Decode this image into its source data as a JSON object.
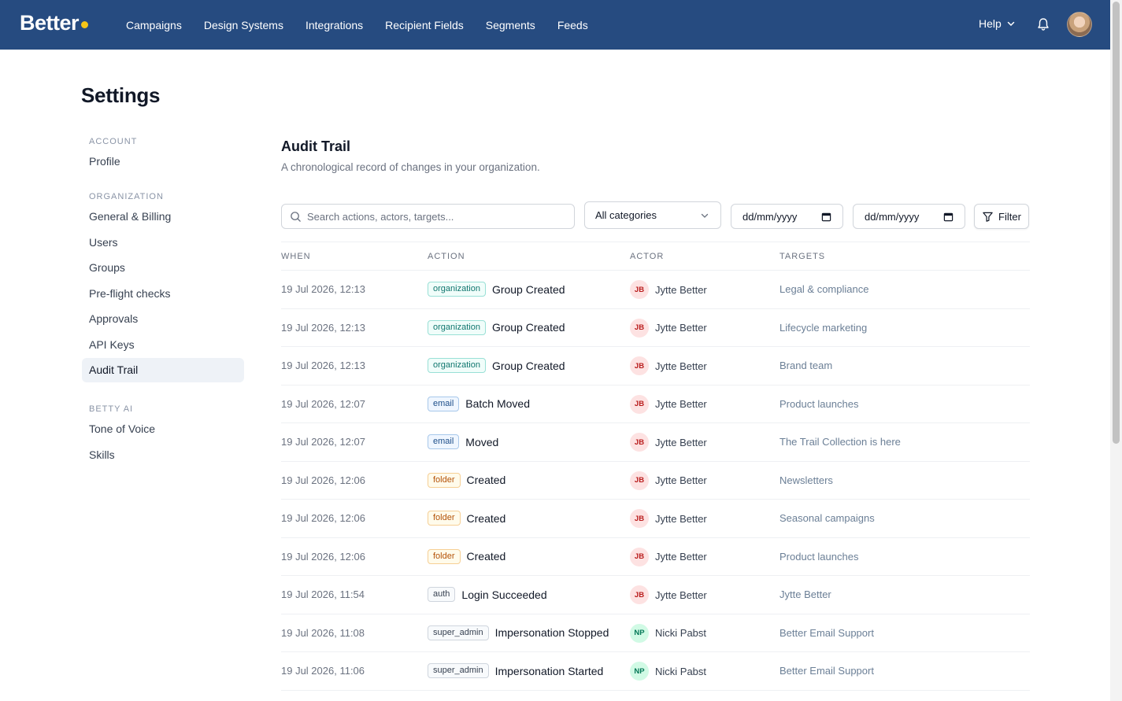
{
  "app": {
    "logo_text": "Better"
  },
  "nav": {
    "items": [
      "Campaigns",
      "Design Systems",
      "Integrations",
      "Recipient Fields",
      "Segments",
      "Feeds"
    ],
    "help_label": "Help"
  },
  "page": {
    "title": "Settings"
  },
  "sidebar": {
    "sections": [
      {
        "heading": "ACCOUNT",
        "items": [
          "Profile"
        ]
      },
      {
        "heading": "ORGANIZATION",
        "items": [
          "General & Billing",
          "Users",
          "Groups",
          "Pre-flight checks",
          "Approvals",
          "API Keys",
          "Audit Trail"
        ]
      },
      {
        "heading": "BETTY AI",
        "items": [
          "Tone of Voice",
          "Skills"
        ]
      }
    ],
    "active_item": "Audit Trail"
  },
  "main": {
    "title": "Audit Trail",
    "subtitle": "A chronological record of changes in your organization."
  },
  "filters": {
    "search_placeholder": "Search actions, actors, targets...",
    "category_value": "All categories",
    "date_from": "dd/mm/yyyy",
    "date_to": "dd/mm/yyyy",
    "filter_label": "Filter"
  },
  "table": {
    "headers": {
      "when": "WHEN",
      "action": "ACTION",
      "actor": "ACTOR",
      "targets": "TARGETS"
    },
    "rows": [
      {
        "when": "19 Jul 2026, 12:13",
        "category": "organization",
        "action": "Group Created",
        "initials": "JB",
        "actor": "Jytte Better",
        "target": "Legal & compliance"
      },
      {
        "when": "19 Jul 2026, 12:13",
        "category": "organization",
        "action": "Group Created",
        "initials": "JB",
        "actor": "Jytte Better",
        "target": "Lifecycle marketing"
      },
      {
        "when": "19 Jul 2026, 12:13",
        "category": "organization",
        "action": "Group Created",
        "initials": "JB",
        "actor": "Jytte Better",
        "target": "Brand team"
      },
      {
        "when": "19 Jul 2026, 12:07",
        "category": "email",
        "action": "Batch Moved",
        "initials": "JB",
        "actor": "Jytte Better",
        "target": "Product launches"
      },
      {
        "when": "19 Jul 2026, 12:07",
        "category": "email",
        "action": "Moved",
        "initials": "JB",
        "actor": "Jytte Better",
        "target": "The Trail Collection is here"
      },
      {
        "when": "19 Jul 2026, 12:06",
        "category": "folder",
        "action": "Created",
        "initials": "JB",
        "actor": "Jytte Better",
        "target": "Newsletters"
      },
      {
        "when": "19 Jul 2026, 12:06",
        "category": "folder",
        "action": "Created",
        "initials": "JB",
        "actor": "Jytte Better",
        "target": "Seasonal campaigns"
      },
      {
        "when": "19 Jul 2026, 12:06",
        "category": "folder",
        "action": "Created",
        "initials": "JB",
        "actor": "Jytte Better",
        "target": "Product launches"
      },
      {
        "when": "19 Jul 2026, 11:54",
        "category": "auth",
        "action": "Login Succeeded",
        "initials": "JB",
        "actor": "Jytte Better",
        "target": "Jytte Better"
      },
      {
        "when": "19 Jul 2026, 11:08",
        "category": "super_admin",
        "action": "Impersonation Stopped",
        "initials": "NP",
        "actor": "Nicki Pabst",
        "target": "Better Email Support"
      },
      {
        "when": "19 Jul 2026, 11:06",
        "category": "super_admin",
        "action": "Impersonation Started",
        "initials": "NP",
        "actor": "Nicki Pabst",
        "target": "Better Email Support"
      }
    ]
  },
  "icons": {
    "search": "search-icon",
    "chevron": "chevron-down-icon",
    "calendar": "calendar-icon",
    "filter": "filter-icon",
    "bell": "bell-icon"
  },
  "colors": {
    "nav_bg": "#264b80",
    "logo_dot": "#f5c518"
  }
}
